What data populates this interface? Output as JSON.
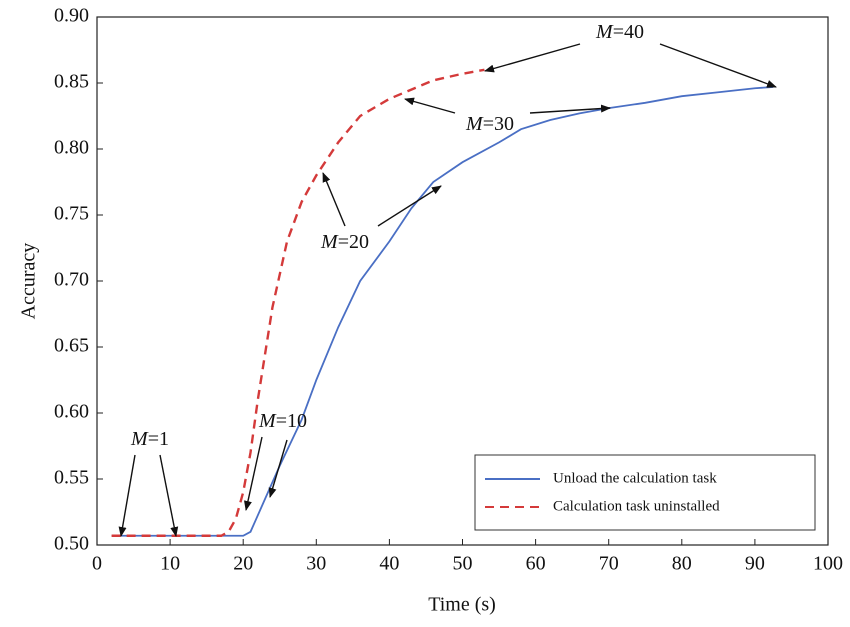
{
  "chart_data": {
    "type": "line",
    "x_label": "Time (s)",
    "y_label": "Accuracy",
    "xlim": [
      0,
      100
    ],
    "xticks": [
      0,
      10,
      20,
      30,
      40,
      50,
      60,
      70,
      80,
      90,
      100
    ],
    "ylim": [
      0.5,
      0.9
    ],
    "yticks": [
      {
        "value": 0.5,
        "label": "0.50"
      },
      {
        "value": 0.55,
        "label": "0.55"
      },
      {
        "value": 0.6,
        "label": "0.60"
      },
      {
        "value": 0.65,
        "label": "0.65"
      },
      {
        "value": 0.7,
        "label": "0.70"
      },
      {
        "value": 0.75,
        "label": "0.75"
      },
      {
        "value": 0.8,
        "label": "0.80"
      },
      {
        "value": 0.85,
        "label": "0.85"
      },
      {
        "value": 0.9,
        "label": "0.90"
      }
    ],
    "legend": "lower right",
    "series": [
      {
        "name": "Unload the calculation task",
        "color": "#4a6fc4",
        "dash": "solid",
        "x": [
          2,
          5,
          10,
          15,
          20,
          21,
          23,
          25,
          28,
          30,
          33,
          36,
          40,
          43,
          46,
          50,
          55,
          58,
          62,
          66,
          70,
          75,
          80,
          85,
          90,
          92.5
        ],
        "values": [
          0.507,
          0.507,
          0.507,
          0.507,
          0.507,
          0.51,
          0.535,
          0.56,
          0.595,
          0.625,
          0.665,
          0.7,
          0.73,
          0.755,
          0.775,
          0.79,
          0.805,
          0.815,
          0.822,
          0.827,
          0.831,
          0.835,
          0.84,
          0.843,
          0.846,
          0.847
        ]
      },
      {
        "name": "Calculation task uninstalled",
        "color": "#d43a3a",
        "dash": "dashed",
        "x": [
          2,
          10,
          17,
          18,
          19,
          20,
          21,
          22,
          24,
          26,
          28,
          30,
          33,
          36,
          40,
          43,
          46,
          50,
          53
        ],
        "values": [
          0.507,
          0.507,
          0.507,
          0.51,
          0.52,
          0.54,
          0.57,
          0.61,
          0.68,
          0.73,
          0.76,
          0.78,
          0.805,
          0.825,
          0.838,
          0.845,
          0.852,
          0.857,
          0.86
        ]
      }
    ],
    "annotations": [
      "M=1",
      "M=10",
      "M=20",
      "M=30",
      "M=40"
    ]
  }
}
